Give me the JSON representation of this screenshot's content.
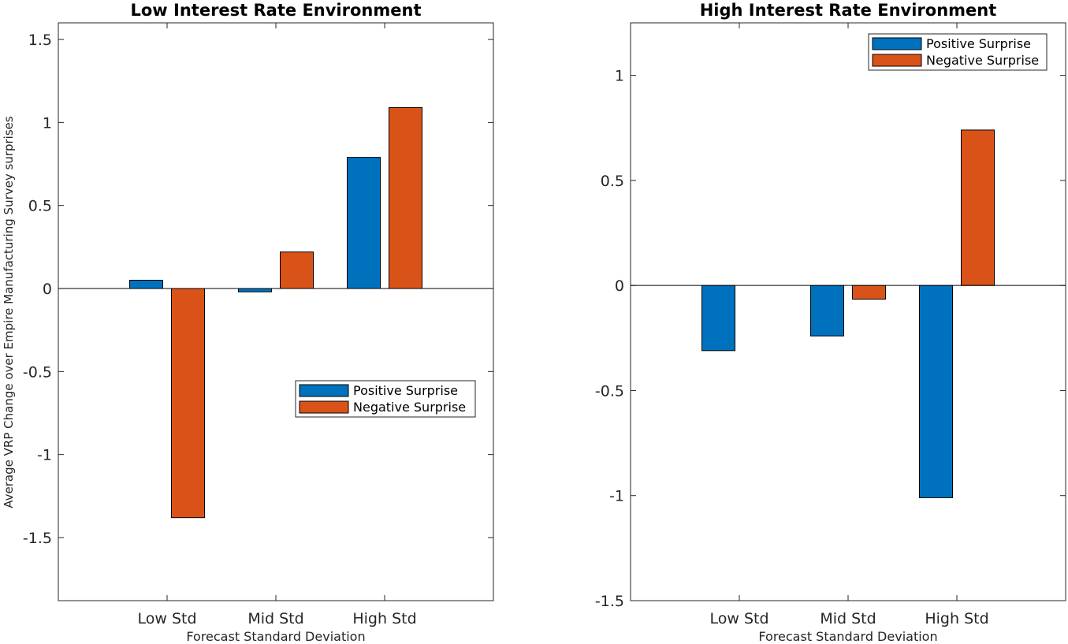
{
  "chart_data": [
    {
      "type": "bar",
      "title": "Low Interest Rate Environment",
      "xlabel": "Forecast Standard Deviation",
      "ylabel": "Average VRP Change over Empire Manufacturing Survey surprises",
      "categories": [
        "Low Std",
        "Mid Std",
        "High Std"
      ],
      "series": [
        {
          "name": "Positive Surprise",
          "color": "#0072BD",
          "values": [
            0.05,
            -0.02,
            0.79
          ]
        },
        {
          "name": "Negative Surprise",
          "color": "#D95319",
          "values": [
            -1.38,
            0.22,
            1.09
          ]
        }
      ],
      "ylim": [
        -1.88,
        1.6
      ],
      "yticks": [
        1.5,
        1,
        0.5,
        0,
        -0.5,
        -1,
        -1.5
      ],
      "ytick_labels": [
        "1.5",
        "1",
        "0.5",
        "0",
        "-0.5",
        "-1",
        "-1.5"
      ],
      "legend_location": "middle-right",
      "grid": false
    },
    {
      "type": "bar",
      "title": "High Interest Rate Environment",
      "xlabel": "Forecast Standard Deviation",
      "ylabel": "",
      "categories": [
        "Low Std",
        "Mid Std",
        "High Std"
      ],
      "series": [
        {
          "name": "Positive Surprise",
          "color": "#0072BD",
          "values": [
            -0.31,
            -0.24,
            -1.01
          ]
        },
        {
          "name": "Negative Surprise",
          "color": "#D95319",
          "values": [
            0.0,
            -0.065,
            0.74
          ]
        }
      ],
      "ylim": [
        -1.5,
        1.25
      ],
      "yticks": [
        1,
        0.5,
        0,
        -0.5,
        -1,
        -1.5
      ],
      "ytick_labels": [
        "1",
        "0.5",
        "0",
        "-0.5",
        "-1",
        "-1.5"
      ],
      "legend_location": "top-right",
      "grid": false
    }
  ]
}
